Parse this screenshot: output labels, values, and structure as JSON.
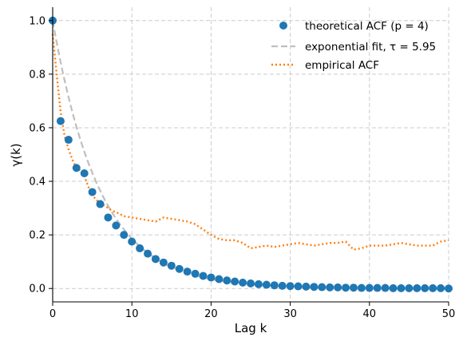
{
  "chart_data": {
    "type": "line",
    "title": "",
    "xlabel": "Lag k",
    "ylabel": "γ(k)",
    "xlim": [
      0,
      50
    ],
    "ylim": [
      -0.05,
      1.05
    ],
    "grid": true,
    "legend_position": "top-right",
    "x_ticks": [
      "0",
      "10",
      "20",
      "30",
      "40",
      "50"
    ],
    "y_ticks": [
      "0.0",
      "0.2",
      "0.4",
      "0.6",
      "0.8",
      "1.0"
    ],
    "series": [
      {
        "name": "theoretical ACF (p = 4)",
        "style": "scatter",
        "color": "#1f77b4",
        "x": [
          0,
          1,
          2,
          3,
          4,
          5,
          6,
          7,
          8,
          9,
          10,
          11,
          12,
          13,
          14,
          15,
          16,
          17,
          18,
          19,
          20,
          21,
          22,
          23,
          24,
          25,
          26,
          27,
          28,
          29,
          30,
          31,
          32,
          33,
          34,
          35,
          36,
          37,
          38,
          39,
          40,
          41,
          42,
          43,
          44,
          45,
          46,
          47,
          48,
          49,
          50
        ],
        "y": [
          1.0,
          0.625,
          0.555,
          0.45,
          0.43,
          0.36,
          0.315,
          0.265,
          0.235,
          0.2,
          0.175,
          0.15,
          0.13,
          0.11,
          0.097,
          0.085,
          0.073,
          0.063,
          0.055,
          0.047,
          0.041,
          0.035,
          0.03,
          0.026,
          0.022,
          0.019,
          0.016,
          0.014,
          0.012,
          0.01,
          0.009,
          0.008,
          0.007,
          0.006,
          0.005,
          0.004,
          0.004,
          0.003,
          0.003,
          0.002,
          0.002,
          0.002,
          0.002,
          0.001,
          0.001,
          0.001,
          0.001,
          0.001,
          0.001,
          0.001,
          0.0
        ]
      },
      {
        "name": "exponential fit, τ =  5.95",
        "style": "dashed",
        "color": "#bfbfbf",
        "tau": 5.95
      },
      {
        "name": "empirical ACF",
        "style": "dotted",
        "color": "#ff7f0e",
        "x": [
          0,
          0.5,
          1,
          1.5,
          2,
          2.5,
          3,
          3.5,
          4,
          4.5,
          5,
          5.5,
          6,
          6.5,
          7,
          7.5,
          8,
          9,
          10,
          11,
          12,
          13,
          14,
          15,
          16,
          17,
          18,
          19,
          20,
          21,
          22,
          23,
          24,
          25,
          26,
          27,
          28,
          29,
          30,
          31,
          32,
          33,
          34,
          35,
          36,
          37,
          38,
          39,
          40,
          41,
          42,
          43,
          44,
          45,
          46,
          47,
          48,
          49,
          50
        ],
        "y": [
          0.95,
          0.8,
          0.66,
          0.57,
          0.52,
          0.48,
          0.45,
          0.44,
          0.42,
          0.38,
          0.35,
          0.33,
          0.32,
          0.31,
          0.3,
          0.29,
          0.285,
          0.27,
          0.265,
          0.26,
          0.255,
          0.25,
          0.265,
          0.26,
          0.255,
          0.25,
          0.24,
          0.22,
          0.2,
          0.185,
          0.18,
          0.18,
          0.17,
          0.15,
          0.155,
          0.16,
          0.155,
          0.16,
          0.165,
          0.17,
          0.165,
          0.16,
          0.165,
          0.17,
          0.17,
          0.175,
          0.145,
          0.15,
          0.16,
          0.16,
          0.16,
          0.165,
          0.17,
          0.165,
          0.16,
          0.16,
          0.16,
          0.175,
          0.18
        ]
      }
    ]
  }
}
